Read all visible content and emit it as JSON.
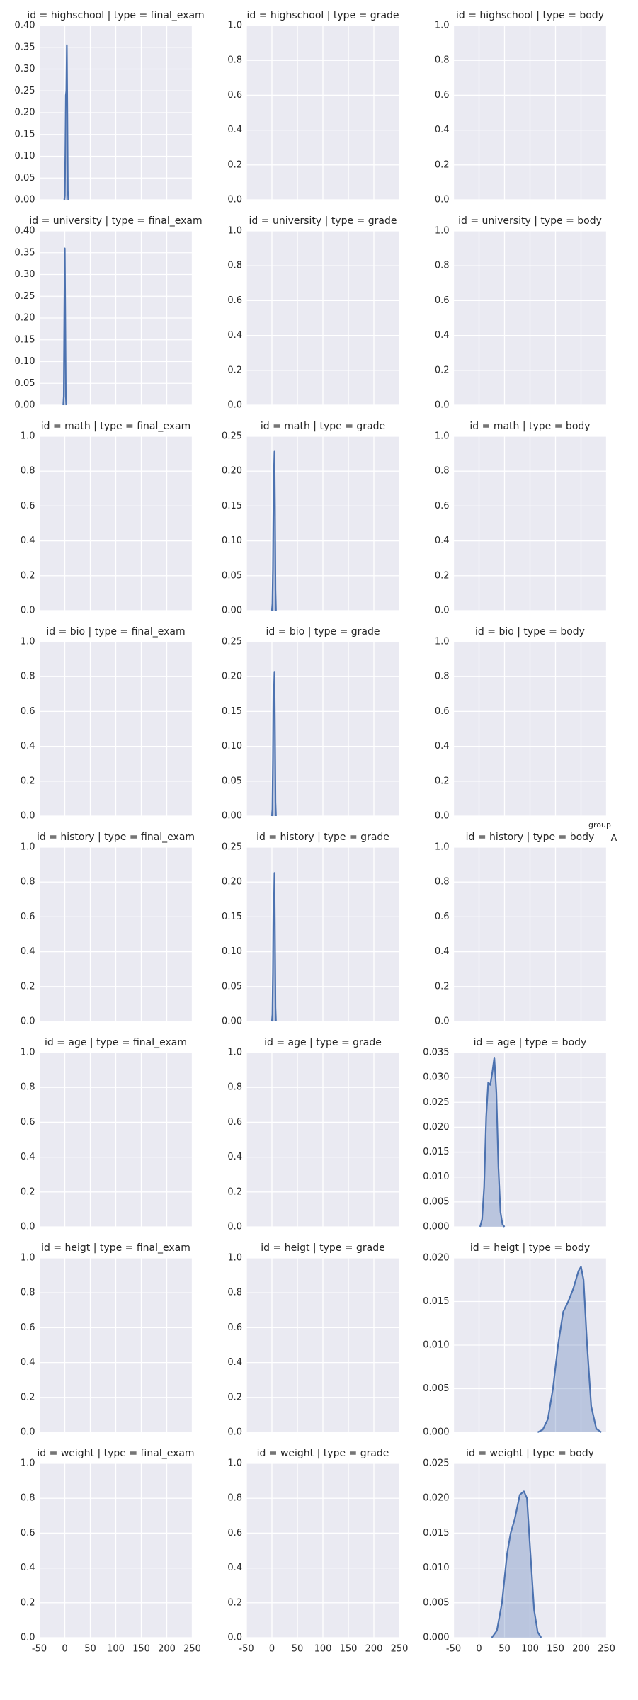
{
  "chart_data": [
    {
      "type": "line",
      "title": "id = highschool | type = final_exam",
      "xlim": [
        -50,
        250
      ],
      "xticks": [
        -50,
        0,
        50,
        100,
        150,
        200,
        250
      ],
      "ylim": [
        0,
        0.4
      ],
      "yticks": [
        {
          "value": 0,
          "label": "0.00"
        },
        0.05,
        {
          "value": 0.1,
          "label": "0.10"
        },
        0.15,
        {
          "value": 0.2,
          "label": "0.20"
        },
        0.25,
        {
          "value": 0.3,
          "label": "0.30"
        },
        0.35,
        {
          "value": 0.4,
          "label": "0.40"
        }
      ],
      "series": [
        {
          "color": "#4c72b0",
          "x": [
            -1,
            0,
            1,
            2,
            3,
            4,
            5,
            6,
            7
          ],
          "values": [
            0,
            0.01,
            0.1,
            0.24,
            0.25,
            0.355,
            0.2,
            0.02,
            0
          ]
        }
      ]
    },
    {
      "type": "line",
      "title": "id = highschool | type = grade",
      "xlim": [
        -50,
        250
      ],
      "xticks": [
        -50,
        0,
        50,
        100,
        150,
        200,
        250
      ],
      "ylim": [
        0,
        1
      ],
      "yticks": [
        {
          "value": 0,
          "label": "0.0"
        },
        0.2,
        0.4,
        0.6,
        0.8,
        {
          "value": 1,
          "label": "1.0"
        }
      ],
      "series": []
    },
    {
      "type": "line",
      "title": "id = highschool | type = body",
      "xlim": [
        -50,
        250
      ],
      "xticks": [
        -50,
        0,
        50,
        100,
        150,
        200,
        250
      ],
      "ylim": [
        0,
        1
      ],
      "yticks": [
        {
          "value": 0,
          "label": "0.0"
        },
        0.2,
        0.4,
        0.6,
        0.8,
        {
          "value": 1,
          "label": "1.0"
        }
      ],
      "series": []
    },
    {
      "type": "line",
      "title": "id = university | type = final_exam",
      "xlim": [
        -50,
        250
      ],
      "xticks": [
        -50,
        0,
        50,
        100,
        150,
        200,
        250
      ],
      "ylim": [
        0,
        0.4
      ],
      "yticks": [
        {
          "value": 0,
          "label": "0.00"
        },
        0.05,
        {
          "value": 0.1,
          "label": "0.10"
        },
        0.15,
        {
          "value": 0.2,
          "label": "0.20"
        },
        0.25,
        {
          "value": 0.3,
          "label": "0.30"
        },
        0.35,
        {
          "value": 0.4,
          "label": "0.40"
        }
      ],
      "series": [
        {
          "color": "#4c72b0",
          "x": [
            -3,
            -2,
            -1,
            0,
            1,
            2,
            3
          ],
          "values": [
            0,
            0.02,
            0.2,
            0.36,
            0.2,
            0.02,
            0
          ]
        }
      ]
    },
    {
      "type": "line",
      "title": "id = university | type = grade",
      "xlim": [
        -50,
        250
      ],
      "xticks": [
        -50,
        0,
        50,
        100,
        150,
        200,
        250
      ],
      "ylim": [
        0,
        1
      ],
      "yticks": [
        {
          "value": 0,
          "label": "0.0"
        },
        0.2,
        0.4,
        0.6,
        0.8,
        {
          "value": 1,
          "label": "1.0"
        }
      ],
      "series": []
    },
    {
      "type": "line",
      "title": "id = university | type = body",
      "xlim": [
        -50,
        250
      ],
      "xticks": [
        -50,
        0,
        50,
        100,
        150,
        200,
        250
      ],
      "ylim": [
        0,
        1
      ],
      "yticks": [
        {
          "value": 0,
          "label": "0.0"
        },
        0.2,
        0.4,
        0.6,
        0.8,
        {
          "value": 1,
          "label": "1.0"
        }
      ],
      "series": []
    },
    {
      "type": "line",
      "title": "id = math | type = final_exam",
      "xlim": [
        -50,
        250
      ],
      "xticks": [
        -50,
        0,
        50,
        100,
        150,
        200,
        250
      ],
      "ylim": [
        0,
        1
      ],
      "yticks": [
        {
          "value": 0,
          "label": "0.0"
        },
        0.2,
        0.4,
        0.6,
        0.8,
        {
          "value": 1,
          "label": "1.0"
        }
      ],
      "series": []
    },
    {
      "type": "line",
      "title": "id = math | type = grade",
      "xlim": [
        -50,
        250
      ],
      "xticks": [
        -50,
        0,
        50,
        100,
        150,
        200,
        250
      ],
      "ylim": [
        0,
        0.25
      ],
      "yticks": [
        {
          "value": 0,
          "label": "0.00"
        },
        0.05,
        {
          "value": 0.1,
          "label": "0.10"
        },
        0.15,
        {
          "value": 0.2,
          "label": "0.20"
        },
        0.25
      ],
      "series": [
        {
          "color": "#4c72b0",
          "x": [
            0,
            1,
            2,
            3,
            4,
            5,
            6,
            7,
            8
          ],
          "values": [
            0,
            0.01,
            0.06,
            0.15,
            0.2,
            0.228,
            0.15,
            0.03,
            0
          ]
        }
      ]
    },
    {
      "type": "line",
      "title": "id = math | type = body",
      "xlim": [
        -50,
        250
      ],
      "xticks": [
        -50,
        0,
        50,
        100,
        150,
        200,
        250
      ],
      "ylim": [
        0,
        1
      ],
      "yticks": [
        {
          "value": 0,
          "label": "0.0"
        },
        0.2,
        0.4,
        0.6,
        0.8,
        {
          "value": 1,
          "label": "1.0"
        }
      ],
      "series": []
    },
    {
      "type": "line",
      "title": "id = bio | type = final_exam",
      "xlim": [
        -50,
        250
      ],
      "xticks": [
        -50,
        0,
        50,
        100,
        150,
        200,
        250
      ],
      "ylim": [
        0,
        1
      ],
      "yticks": [
        {
          "value": 0,
          "label": "0.0"
        },
        0.2,
        0.4,
        0.6,
        0.8,
        {
          "value": 1,
          "label": "1.0"
        }
      ],
      "series": []
    },
    {
      "type": "line",
      "title": "id = bio | type = grade",
      "xlim": [
        -50,
        250
      ],
      "xticks": [
        -50,
        0,
        50,
        100,
        150,
        200,
        250
      ],
      "ylim": [
        0,
        0.25
      ],
      "yticks": [
        {
          "value": 0,
          "label": "0.00"
        },
        0.05,
        {
          "value": 0.1,
          "label": "0.10"
        },
        0.15,
        {
          "value": 0.2,
          "label": "0.20"
        },
        0.25
      ],
      "series": [
        {
          "color": "#4c72b0",
          "x": [
            0,
            1,
            2,
            3,
            4,
            5,
            6,
            7,
            8
          ],
          "values": [
            0,
            0.01,
            0.08,
            0.186,
            0.18,
            0.207,
            0.12,
            0.02,
            0
          ]
        }
      ]
    },
    {
      "type": "line",
      "title": "id = bio | type = body",
      "xlim": [
        -50,
        250
      ],
      "xticks": [
        -50,
        0,
        50,
        100,
        150,
        200,
        250
      ],
      "ylim": [
        0,
        1
      ],
      "yticks": [
        {
          "value": 0,
          "label": "0.0"
        },
        0.2,
        0.4,
        0.6,
        0.8,
        {
          "value": 1,
          "label": "1.0"
        }
      ],
      "series": []
    },
    {
      "type": "line",
      "title": "id = history | type = final_exam",
      "xlim": [
        -50,
        250
      ],
      "xticks": [
        -50,
        0,
        50,
        100,
        150,
        200,
        250
      ],
      "ylim": [
        0,
        1
      ],
      "yticks": [
        {
          "value": 0,
          "label": "0.0"
        },
        0.2,
        0.4,
        0.6,
        0.8,
        {
          "value": 1,
          "label": "1.0"
        }
      ],
      "series": []
    },
    {
      "type": "line",
      "title": "id = history | type = grade",
      "xlim": [
        -50,
        250
      ],
      "xticks": [
        -50,
        0,
        50,
        100,
        150,
        200,
        250
      ],
      "ylim": [
        0,
        0.25
      ],
      "yticks": [
        {
          "value": 0,
          "label": "0.00"
        },
        0.05,
        {
          "value": 0.1,
          "label": "0.10"
        },
        0.15,
        {
          "value": 0.2,
          "label": "0.20"
        },
        0.25
      ],
      "series": [
        {
          "color": "#4c72b0",
          "x": [
            0,
            1,
            2,
            3,
            4,
            5,
            6,
            7,
            8
          ],
          "values": [
            0,
            0.01,
            0.07,
            0.165,
            0.17,
            0.213,
            0.12,
            0.02,
            0
          ]
        }
      ]
    },
    {
      "type": "line",
      "title": "id = history | type = body",
      "xlim": [
        -50,
        250
      ],
      "xticks": [
        -50,
        0,
        50,
        100,
        150,
        200,
        250
      ],
      "ylim": [
        0,
        1
      ],
      "yticks": [
        {
          "value": 0,
          "label": "0.0"
        },
        0.2,
        0.4,
        0.6,
        0.8,
        {
          "value": 1,
          "label": "1.0"
        }
      ],
      "series": []
    },
    {
      "type": "line",
      "title": "id = age | type = final_exam",
      "xlim": [
        -50,
        250
      ],
      "xticks": [
        -50,
        0,
        50,
        100,
        150,
        200,
        250
      ],
      "ylim": [
        0,
        1
      ],
      "yticks": [
        {
          "value": 0,
          "label": "0.0"
        },
        0.2,
        0.4,
        0.6,
        0.8,
        {
          "value": 1,
          "label": "1.0"
        }
      ],
      "series": []
    },
    {
      "type": "line",
      "title": "id = age | type = grade",
      "xlim": [
        -50,
        250
      ],
      "xticks": [
        -50,
        0,
        50,
        100,
        150,
        200,
        250
      ],
      "ylim": [
        0,
        1
      ],
      "yticks": [
        {
          "value": 0,
          "label": "0.0"
        },
        0.2,
        0.4,
        0.6,
        0.8,
        {
          "value": 1,
          "label": "1.0"
        }
      ],
      "series": []
    },
    {
      "type": "line",
      "title": "id = age | type = body",
      "xlim": [
        -50,
        250
      ],
      "xticks": [
        -50,
        0,
        50,
        100,
        150,
        200,
        250
      ],
      "ylim": [
        0,
        0.035
      ],
      "yticks": [
        {
          "value": 0,
          "label": "0.000"
        },
        0.005,
        {
          "value": 0.01,
          "label": "0.010"
        },
        0.015,
        {
          "value": 0.02,
          "label": "0.020"
        },
        0.025,
        {
          "value": 0.03,
          "label": "0.030"
        },
        0.035
      ],
      "series": [
        {
          "color": "#4c72b0",
          "x": [
            2,
            6,
            10,
            14,
            18,
            22,
            26,
            30,
            34,
            38,
            42,
            46,
            50
          ],
          "values": [
            0,
            0.0015,
            0.008,
            0.022,
            0.029,
            0.0285,
            0.031,
            0.034,
            0.027,
            0.012,
            0.003,
            0.0005,
            0
          ]
        }
      ]
    },
    {
      "type": "line",
      "title": "id = heigt | type = final_exam",
      "xlim": [
        -50,
        250
      ],
      "xticks": [
        -50,
        0,
        50,
        100,
        150,
        200,
        250
      ],
      "ylim": [
        0,
        1
      ],
      "yticks": [
        {
          "value": 0,
          "label": "0.0"
        },
        0.2,
        0.4,
        0.6,
        0.8,
        {
          "value": 1,
          "label": "1.0"
        }
      ],
      "series": []
    },
    {
      "type": "line",
      "title": "id = heigt | type = grade",
      "xlim": [
        -50,
        250
      ],
      "xticks": [
        -50,
        0,
        50,
        100,
        150,
        200,
        250
      ],
      "ylim": [
        0,
        1
      ],
      "yticks": [
        {
          "value": 0,
          "label": "0.0"
        },
        0.2,
        0.4,
        0.6,
        0.8,
        {
          "value": 1,
          "label": "1.0"
        }
      ],
      "series": []
    },
    {
      "type": "line",
      "title": "id = heigt | type = body",
      "xlim": [
        -50,
        250
      ],
      "xticks": [
        -50,
        0,
        50,
        100,
        150,
        200,
        250
      ],
      "ylim": [
        0,
        0.02
      ],
      "yticks": [
        {
          "value": 0,
          "label": "0.000"
        },
        0.005,
        {
          "value": 0.01,
          "label": "0.010"
        },
        0.015,
        {
          "value": 0.02,
          "label": "0.020"
        }
      ],
      "series": [
        {
          "color": "#4c72b0",
          "x": [
            115,
            125,
            135,
            145,
            155,
            165,
            175,
            185,
            195,
            200,
            205,
            212,
            220,
            230,
            240
          ],
          "values": [
            0,
            0.0003,
            0.0015,
            0.005,
            0.01,
            0.0138,
            0.015,
            0.0165,
            0.0185,
            0.019,
            0.0175,
            0.01,
            0.003,
            0.0004,
            0
          ]
        }
      ]
    },
    {
      "type": "line",
      "title": "id = weight | type = final_exam",
      "xlim": [
        -50,
        250
      ],
      "xticks": [
        -50,
        0,
        50,
        100,
        150,
        200,
        250
      ],
      "ylim": [
        0,
        1
      ],
      "yticks": [
        {
          "value": 0,
          "label": "0.0"
        },
        0.2,
        0.4,
        0.6,
        0.8,
        {
          "value": 1,
          "label": "1.0"
        }
      ],
      "series": []
    },
    {
      "type": "line",
      "title": "id = weight | type = grade",
      "xlim": [
        -50,
        250
      ],
      "xticks": [
        -50,
        0,
        50,
        100,
        150,
        200,
        250
      ],
      "ylim": [
        0,
        1
      ],
      "yticks": [
        {
          "value": 0,
          "label": "0.0"
        },
        0.2,
        0.4,
        0.6,
        0.8,
        {
          "value": 1,
          "label": "1.0"
        }
      ],
      "series": []
    },
    {
      "type": "line",
      "title": "id = weight | type = body",
      "xlim": [
        -50,
        250
      ],
      "xticks": [
        -50,
        0,
        50,
        100,
        150,
        200,
        250
      ],
      "ylim": [
        0,
        0.025
      ],
      "yticks": [
        {
          "value": 0,
          "label": "0.000"
        },
        0.005,
        {
          "value": 0.01,
          "label": "0.010"
        },
        0.015,
        {
          "value": 0.02,
          "label": "0.020"
        },
        0.025
      ],
      "series": [
        {
          "color": "#4c72b0",
          "x": [
            25,
            35,
            45,
            55,
            62,
            70,
            80,
            88,
            94,
            100,
            108,
            115,
            122
          ],
          "values": [
            0,
            0.001,
            0.005,
            0.012,
            0.015,
            0.017,
            0.0205,
            0.021,
            0.02,
            0.013,
            0.004,
            0.0008,
            0
          ]
        }
      ]
    }
  ],
  "legend": {
    "title": "group",
    "labels": [
      "A"
    ]
  }
}
